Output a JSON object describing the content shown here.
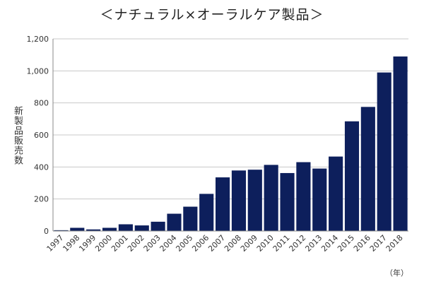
{
  "chart_data": {
    "type": "bar",
    "title": "＜ナチュラル×オーラルケア製品＞",
    "ylabel": "新製品販売数",
    "xlabel": "",
    "x_unit": "（年）",
    "ylim": [
      0,
      1200
    ],
    "yticks": [
      0,
      200,
      400,
      600,
      800,
      1000,
      1200
    ],
    "ytick_labels": [
      "0",
      "200",
      "400",
      "600",
      "800",
      "1,000",
      "1,200"
    ],
    "grid": true,
    "bar_color": "#0d1f5c",
    "categories": [
      "1997",
      "1998",
      "1999",
      "2000",
      "2001",
      "2002",
      "2003",
      "2004",
      "2005",
      "2006",
      "2007",
      "2008",
      "2009",
      "2010",
      "2011",
      "2012",
      "2013",
      "2014",
      "2015",
      "2016",
      "2017",
      "2018"
    ],
    "values": [
      5,
      20,
      10,
      20,
      42,
      35,
      58,
      108,
      152,
      232,
      335,
      378,
      383,
      413,
      362,
      430,
      390,
      465,
      685,
      775,
      990,
      1090
    ]
  }
}
